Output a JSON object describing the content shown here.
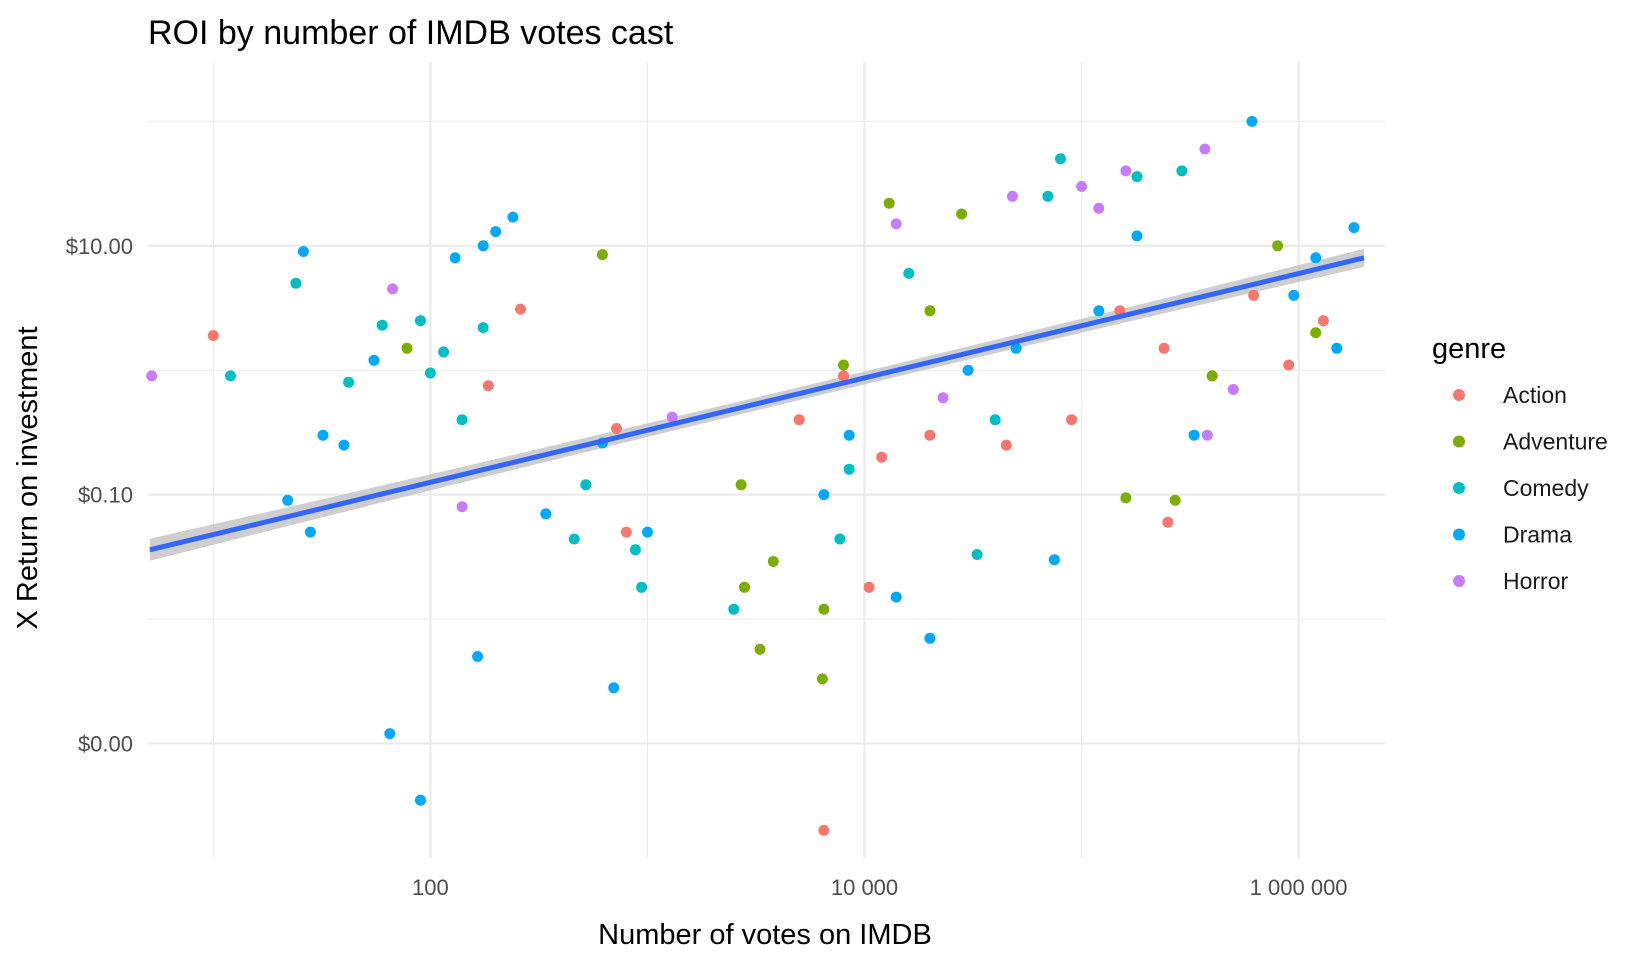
{
  "chart_data": {
    "type": "scatter",
    "title": "ROI by number of IMDB votes cast",
    "xlabel": "Number of votes on IMDB",
    "ylabel": "X Return on investment",
    "x_scale": "log10",
    "y_scale": "log10",
    "xlim": [
      5,
      2500000
    ],
    "ylim": [
      0.00012,
      300
    ],
    "x_ticks": [
      {
        "value": 100,
        "label": "100"
      },
      {
        "value": 10000,
        "label": "10 000"
      },
      {
        "value": 1000000,
        "label": "1 000 000"
      }
    ],
    "y_ticks": [
      {
        "value": 0.001,
        "label": "$0.00"
      },
      {
        "value": 0.1,
        "label": "$0.10"
      },
      {
        "value": 10,
        "label": "$10.00"
      }
    ],
    "grid": true,
    "legend": {
      "title": "genre",
      "position": "right"
    },
    "trend_line": {
      "method": "lm",
      "color": "#3366FF",
      "band_color": "#bdbdbd",
      "x_range": [
        5.1,
        2000000
      ],
      "y_range": [
        0.036,
        8.0
      ]
    },
    "series": [
      {
        "name": "Action",
        "color": "#F8766D",
        "points": [
          [
            10,
            1.9
          ],
          [
            260,
            3.1
          ],
          [
            185,
            0.75
          ],
          [
            800,
            0.05
          ],
          [
            720,
            0.34
          ],
          [
            6500,
            0.0002
          ],
          [
            10500,
            0.018
          ],
          [
            12000,
            0.2
          ],
          [
            20000,
            0.3
          ],
          [
            45000,
            0.25
          ],
          [
            90000,
            0.4
          ],
          [
            150000,
            3
          ],
          [
            250000,
            0.06
          ],
          [
            240000,
            1.5
          ],
          [
            400000,
            0.9
          ],
          [
            620000,
            4.0
          ],
          [
            900000,
            1.1
          ],
          [
            1300000,
            2.5
          ],
          [
            5000,
            0.4
          ],
          [
            8000,
            0.9
          ]
        ]
      },
      {
        "name": "Adventure",
        "color": "#7CAE00",
        "points": [
          [
            78,
            1.5
          ],
          [
            620,
            8.5
          ],
          [
            2700,
            0.12
          ],
          [
            3300,
            0.0057
          ],
          [
            3800,
            0.029
          ],
          [
            2800,
            0.018
          ],
          [
            6400,
            0.0033
          ],
          [
            6500,
            0.012
          ],
          [
            13000,
            22
          ],
          [
            28000,
            18
          ],
          [
            160000,
            0.094
          ],
          [
            270000,
            0.09
          ],
          [
            400000,
            0.9
          ],
          [
            800000,
            10
          ],
          [
            1200000,
            2.0
          ],
          [
            8000,
            1.1
          ],
          [
            20000,
            3.0
          ]
        ]
      },
      {
        "name": "Comedy",
        "color": "#00BFC4",
        "points": [
          [
            12,
            0.9
          ],
          [
            24,
            5.0
          ],
          [
            42,
            0.8
          ],
          [
            60,
            2.3
          ],
          [
            90,
            2.5
          ],
          [
            100,
            0.95
          ],
          [
            115,
            1.4
          ],
          [
            140,
            0.4
          ],
          [
            175,
            2.2
          ],
          [
            460,
            0.044
          ],
          [
            520,
            0.12
          ],
          [
            940,
            0.018
          ],
          [
            880,
            0.036
          ],
          [
            2500,
            0.012
          ],
          [
            7700,
            0.044
          ],
          [
            8500,
            0.16
          ],
          [
            16000,
            6
          ],
          [
            70000,
            25
          ],
          [
            80000,
            50
          ],
          [
            180000,
            36
          ],
          [
            290000,
            40
          ],
          [
            33000,
            0.033
          ],
          [
            40000,
            0.4
          ]
        ]
      },
      {
        "name": "Drama",
        "color": "#00A9FF",
        "points": [
          [
            22,
            0.09
          ],
          [
            28,
            0.05
          ],
          [
            26,
            9.0
          ],
          [
            32,
            0.3
          ],
          [
            40,
            0.25
          ],
          [
            55,
            1.2
          ],
          [
            65,
            0.0012
          ],
          [
            90,
            0.00035
          ],
          [
            130,
            8.0
          ],
          [
            165,
            0.005
          ],
          [
            175,
            10.0
          ],
          [
            200,
            13
          ],
          [
            240,
            17
          ],
          [
            340,
            0.07
          ],
          [
            620,
            0.26
          ],
          [
            700,
            0.0028
          ],
          [
            1000,
            0.05
          ],
          [
            6500,
            0.1
          ],
          [
            8500,
            0.3
          ],
          [
            14000,
            0.015
          ],
          [
            20000,
            0.007
          ],
          [
            30000,
            1.0
          ],
          [
            50000,
            1.5
          ],
          [
            75000,
            0.03
          ],
          [
            120000,
            3.0
          ],
          [
            180000,
            12
          ],
          [
            330000,
            0.3
          ],
          [
            610000,
            100
          ],
          [
            950000,
            4.0
          ],
          [
            1200000,
            8.0
          ],
          [
            1500000,
            1.5
          ],
          [
            1800000,
            14
          ]
        ]
      },
      {
        "name": "Horror",
        "color": "#C77CFF",
        "points": [
          [
            5.2,
            0.9
          ],
          [
            67,
            4.5
          ],
          [
            140,
            0.08
          ],
          [
            1300,
            0.42
          ],
          [
            14000,
            15
          ],
          [
            23000,
            0.6
          ],
          [
            48000,
            25
          ],
          [
            100000,
            30
          ],
          [
            120000,
            20
          ],
          [
            160000,
            40
          ],
          [
            370000,
            60
          ],
          [
            380000,
            0.3
          ],
          [
            500000,
            0.7
          ]
        ]
      }
    ]
  }
}
